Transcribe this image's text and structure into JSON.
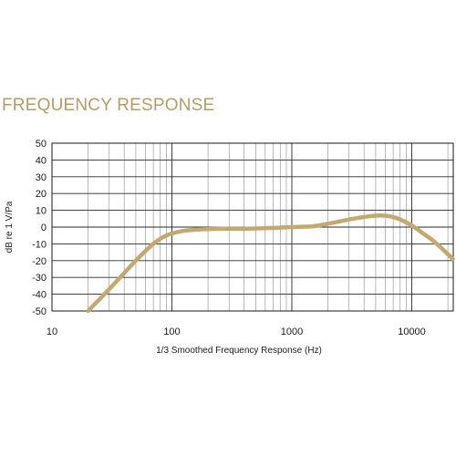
{
  "chart_data": {
    "type": "line",
    "title": "FREQUENCY RESPONSE",
    "xlabel": "1/3 Smoothed Frequency Response (Hz)",
    "ylabel": "dB re 1 V/Pa",
    "x_scale": "log",
    "xlim": [
      10,
      22000
    ],
    "ylim": [
      -50,
      50
    ],
    "x_ticks": [
      10,
      100,
      1000,
      10000
    ],
    "x_tick_labels": [
      "10",
      "100",
      "1000",
      "10000"
    ],
    "y_ticks": [
      50,
      40,
      30,
      20,
      10,
      0,
      -10,
      -20,
      -30,
      -40,
      -50
    ],
    "y_tick_labels": [
      "50",
      "40",
      "30",
      "20",
      "10",
      "0",
      "-10",
      "-20",
      "-30",
      "-40",
      "-50"
    ],
    "grid": true,
    "series": [
      {
        "color": "#c4a86d",
        "x": [
          20,
          30,
          50,
          70,
          90,
          120,
          160,
          250,
          400,
          700,
          1000,
          1500,
          2000,
          3000,
          4000,
          5000,
          6000,
          7000,
          8000,
          10000,
          12000,
          15000,
          18000,
          22000
        ],
        "y": [
          -50,
          -37,
          -20,
          -10,
          -5,
          -2.5,
          -1.5,
          -1,
          -1,
          -0.5,
          0,
          0.5,
          2,
          4.5,
          6,
          6.8,
          6.8,
          6,
          4.5,
          1,
          -3,
          -8,
          -13,
          -19
        ]
      }
    ]
  }
}
